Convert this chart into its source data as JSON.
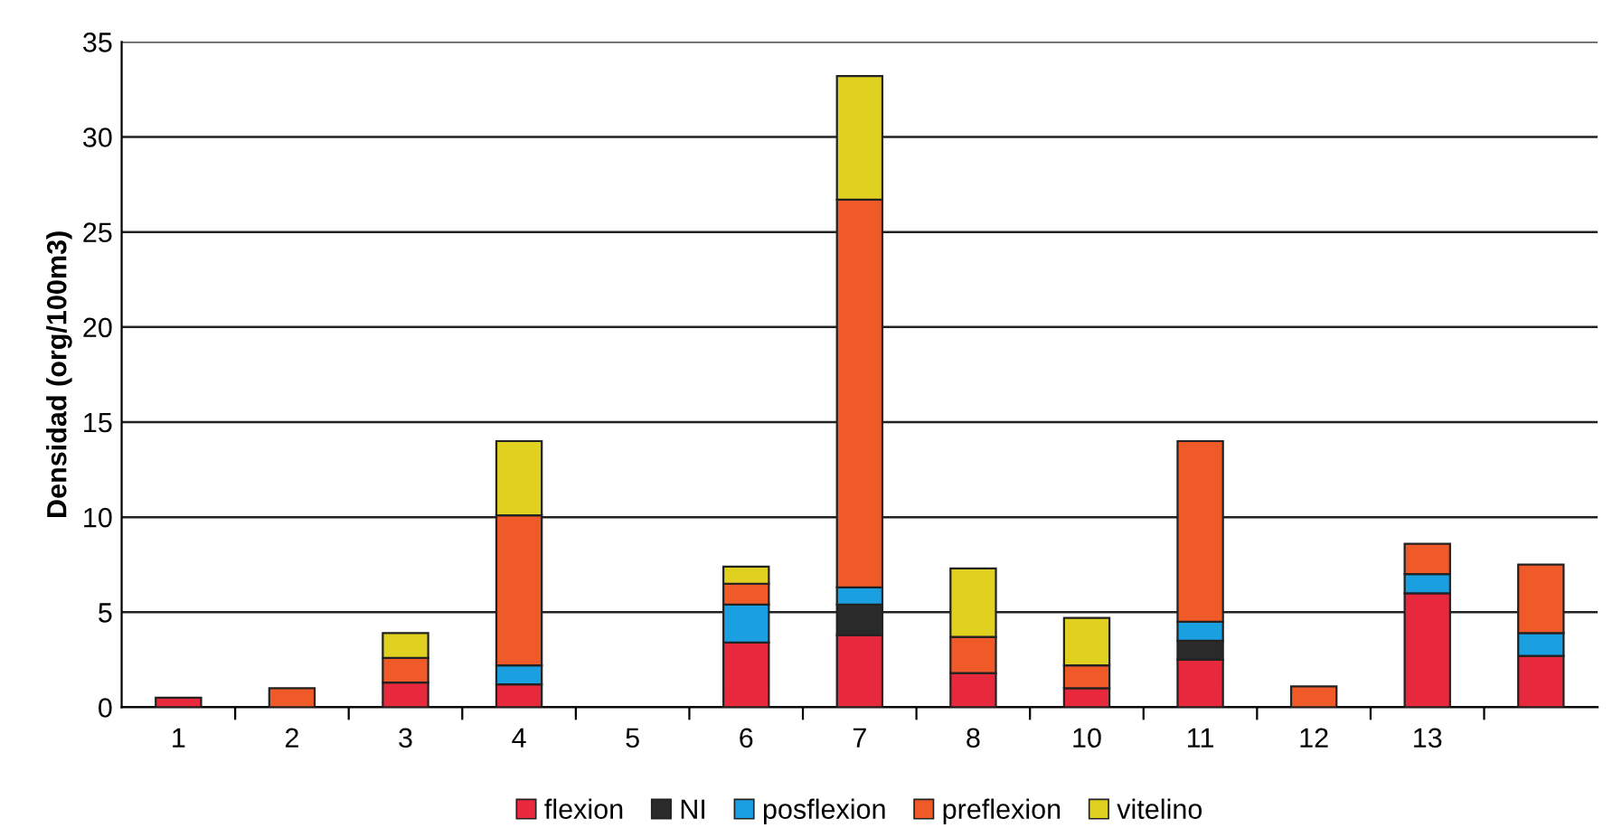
{
  "chart_data": {
    "type": "bar",
    "stacked": true,
    "ylabel": "Densidad (org/100m3)",
    "categories": [
      "1",
      "2",
      "3",
      "4",
      "5",
      "6",
      "7",
      "8",
      "10",
      "11",
      "12",
      "13",
      null
    ],
    "series": [
      {
        "name": "flexion",
        "color": "#e8283c",
        "values": [
          0.5,
          null,
          1.3,
          1.2,
          null,
          3.4,
          3.8,
          1.8,
          1.0,
          2.5,
          null,
          6.0,
          2.7
        ]
      },
      {
        "name": "NI",
        "color": "#2a2a2a",
        "values": [
          null,
          null,
          null,
          null,
          null,
          null,
          1.6,
          null,
          null,
          1.0,
          null,
          null,
          null
        ]
      },
      {
        "name": "posflexion",
        "color": "#1aa0e0",
        "values": [
          null,
          null,
          null,
          1.0,
          null,
          2.0,
          0.9,
          null,
          null,
          1.0,
          null,
          1.0,
          1.2
        ]
      },
      {
        "name": "preflexion",
        "color": "#f05a28",
        "values": [
          null,
          1.0,
          1.3,
          7.9,
          null,
          1.1,
          20.4,
          1.9,
          1.2,
          9.5,
          1.1,
          1.6,
          3.6
        ]
      },
      {
        "name": "vitelino",
        "color": "#e0d020",
        "values": [
          null,
          null,
          1.3,
          3.9,
          null,
          0.9,
          6.5,
          3.6,
          2.5,
          null,
          null,
          null,
          null
        ]
      }
    ],
    "ylim": [
      0,
      35
    ],
    "yticks": [
      0,
      5,
      10,
      15,
      20,
      25,
      30,
      35
    ],
    "grid": "y",
    "legend": "bottom"
  }
}
